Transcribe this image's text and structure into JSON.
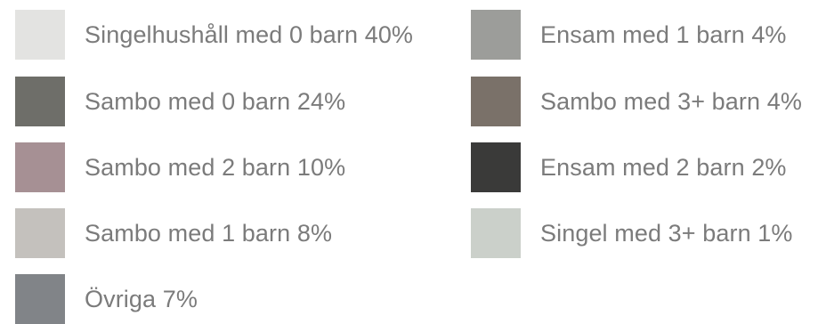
{
  "chart_data": {
    "type": "pie",
    "legend": "right",
    "slices": [
      {
        "label": "Singelhushåll med 0 barn 40%",
        "value": 40,
        "color": "#e3e3e1"
      },
      {
        "label": "Sambo med 0 barn 24%",
        "value": 24,
        "color": "#6e6e69"
      },
      {
        "label": "Sambo med 2 barn 10%",
        "value": 10,
        "color": "#a69094"
      },
      {
        "label": "Sambo med 1 barn 8%",
        "value": 8,
        "color": "#c4c1bd"
      },
      {
        "label": "Övriga 7%",
        "value": 7,
        "color": "#818488"
      },
      {
        "label": "Ensam med 1 barn 4%",
        "value": 4,
        "color": "#9c9d9a"
      },
      {
        "label": "Sambo med 3+ barn 4%",
        "value": 4,
        "color": "#7a7169"
      },
      {
        "label": "Ensam med 2 barn 2%",
        "value": 2,
        "color": "#3a3a39"
      },
      {
        "label": "Singel med 3+ barn 1%",
        "value": 1,
        "color": "#cbd0ca"
      }
    ]
  }
}
